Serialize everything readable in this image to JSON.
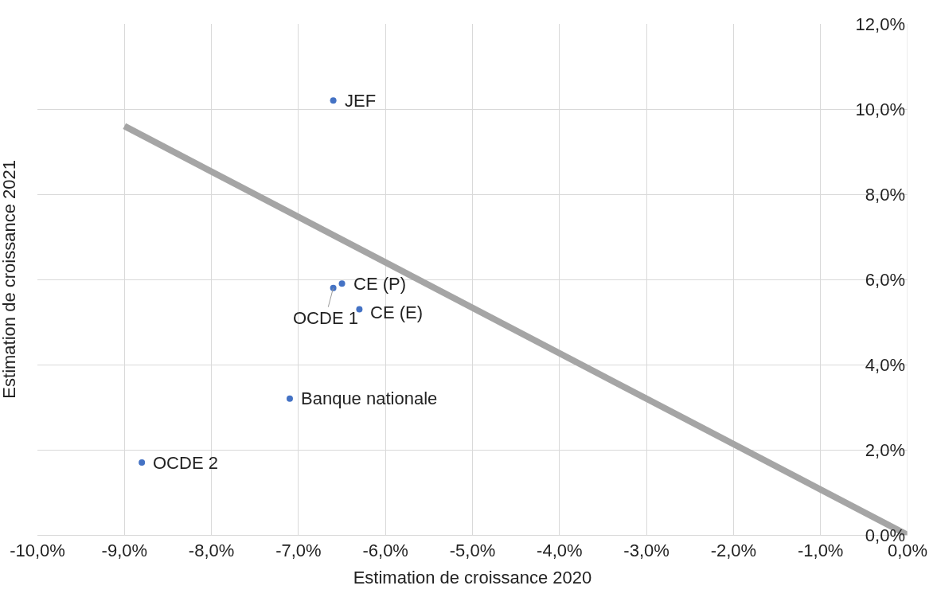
{
  "chart_data": {
    "type": "scatter",
    "xlabel": "Estimation de croissance 2020",
    "ylabel": "Estimation de croissance 2021",
    "series": [
      {
        "color": "#4472c4",
        "x": [
          -6.6,
          -6.5,
          -6.6,
          -6.3,
          -7.1,
          -8.8
        ],
        "values": [
          10.2,
          5.9,
          5.8,
          5.3,
          3.2,
          1.7
        ]
      },
      {
        "type": "line",
        "marker": "none",
        "color": "#a5a5a5",
        "x": [
          -9.0,
          0.0
        ],
        "values": [
          9.6,
          0.0
        ]
      }
    ],
    "annotations": [
      {
        "text": "JEF",
        "x": -6.6,
        "y": 10.2
      },
      {
        "text": "CE (P)",
        "x": -6.5,
        "y": 5.9
      },
      {
        "text": "OCDE 1",
        "x": -6.6,
        "y": 5.8
      },
      {
        "text": "CE (E)",
        "x": -6.3,
        "y": 5.3
      },
      {
        "text": "Banque nationale",
        "x": -7.1,
        "y": 3.2
      },
      {
        "text": "OCDE 2",
        "x": -8.8,
        "y": 1.7
      }
    ],
    "xlim": [
      -10,
      0
    ],
    "xticks": [
      {
        "value": -10,
        "label": "-10,0%"
      },
      {
        "value": -9,
        "label": "-9,0%"
      },
      {
        "value": -8,
        "label": "-8,0%"
      },
      {
        "value": -7,
        "label": "-7,0%"
      },
      {
        "value": -6,
        "label": "-6,0%"
      },
      {
        "value": -5,
        "label": "-5,0%"
      },
      {
        "value": -4,
        "label": "-4,0%"
      },
      {
        "value": -3,
        "label": "-3,0%"
      },
      {
        "value": -2,
        "label": "-2,0%"
      },
      {
        "value": -1,
        "label": "-1,0%"
      },
      {
        "value": 0,
        "label": "0,0%"
      }
    ],
    "ylim": [
      0,
      12
    ],
    "yticks": [
      {
        "value": 0,
        "label": "0,0%"
      },
      {
        "value": 2,
        "label": "2,0%"
      },
      {
        "value": 4,
        "label": "4,0%"
      },
      {
        "value": 6,
        "label": "6,0%"
      },
      {
        "value": 8,
        "label": "8,0%"
      },
      {
        "value": 10,
        "label": "10,0%"
      },
      {
        "value": 12,
        "label": "12,0%"
      }
    ],
    "grid": true,
    "marker": "circle",
    "line_style": "solid"
  }
}
